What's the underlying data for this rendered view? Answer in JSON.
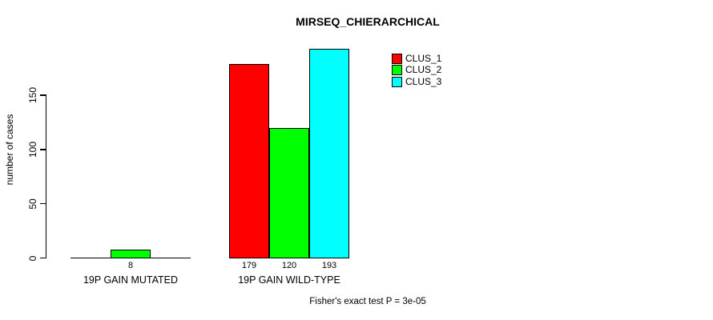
{
  "title": "MIRSEQ_CHIERARCHICAL",
  "caption": "Fisher's exact test P = 3e-05",
  "y_axis": {
    "label": "number of cases",
    "tick_labels": [
      "0",
      "50",
      "100",
      "150"
    ]
  },
  "x_axis": {
    "group_labels": [
      "19P GAIN MUTATED",
      "19P GAIN WILD-TYPE"
    ]
  },
  "legend": {
    "items": [
      {
        "label": "CLUS_1",
        "color": "#ff0000"
      },
      {
        "label": "CLUS_2",
        "color": "#00ff00"
      },
      {
        "label": "CLUS_3",
        "color": "#00ffff"
      }
    ]
  },
  "chart_data": {
    "type": "bar",
    "title": "MIRSEQ_CHIERARCHICAL",
    "categories": [
      "19P GAIN MUTATED",
      "19P GAIN WILD-TYPE"
    ],
    "series": [
      {
        "name": "CLUS_1",
        "color": "#ff0000",
        "values": [
          0,
          179
        ]
      },
      {
        "name": "CLUS_2",
        "color": "#00ff00",
        "values": [
          8,
          120
        ]
      },
      {
        "name": "CLUS_3",
        "color": "#00ffff",
        "values": [
          0,
          193
        ]
      }
    ],
    "bar_value_labels": [
      [
        "8"
      ],
      [
        "179",
        "120",
        "193"
      ]
    ],
    "xlabel": "",
    "ylabel": "number of cases",
    "yticks": [
      0,
      50,
      100,
      150
    ],
    "ylim": [
      0,
      200
    ],
    "grid": false,
    "legend_position": "top-right",
    "annotation": "Fisher's exact test P = 3e-05"
  }
}
